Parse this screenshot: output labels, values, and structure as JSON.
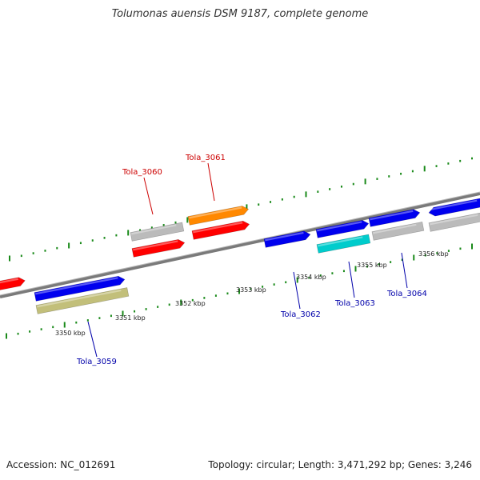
{
  "title": "Tolumonas auensis DSM 9187, complete genome",
  "accession": "Accession: NC_012691",
  "summary": "Topology: circular; Length: 3,471,292 bp; Genes: 3,246",
  "colors": {
    "backbone": "#7a7a7a",
    "tick": "#1a8a1a",
    "red": "#ff0000",
    "orange": "#ff8800",
    "blue": "#0000ee",
    "gray": "#bbbbbb",
    "cyan": "#00cccc",
    "khaki": "#c2bf7a",
    "label_top": "#cc0000",
    "label_bottom": "#0000aa"
  },
  "tick_labels": [
    {
      "text": "3350 kbp"
    },
    {
      "text": "3351 kbp"
    },
    {
      "text": "3352 kbp"
    },
    {
      "text": "3353 kbp"
    },
    {
      "text": "3354 kbp"
    },
    {
      "text": "3355 kbp"
    },
    {
      "text": "3356 kbp"
    }
  ],
  "gene_labels": [
    {
      "text": "Tola_3060",
      "strand": "forward"
    },
    {
      "text": "Tola_3061",
      "strand": "forward"
    },
    {
      "text": "Tola_3059",
      "strand": "reverse"
    },
    {
      "text": "Tola_3062",
      "strand": "reverse"
    },
    {
      "text": "Tola_3063",
      "strand": "reverse"
    },
    {
      "text": "Tola_3064",
      "strand": "reverse"
    }
  ]
}
